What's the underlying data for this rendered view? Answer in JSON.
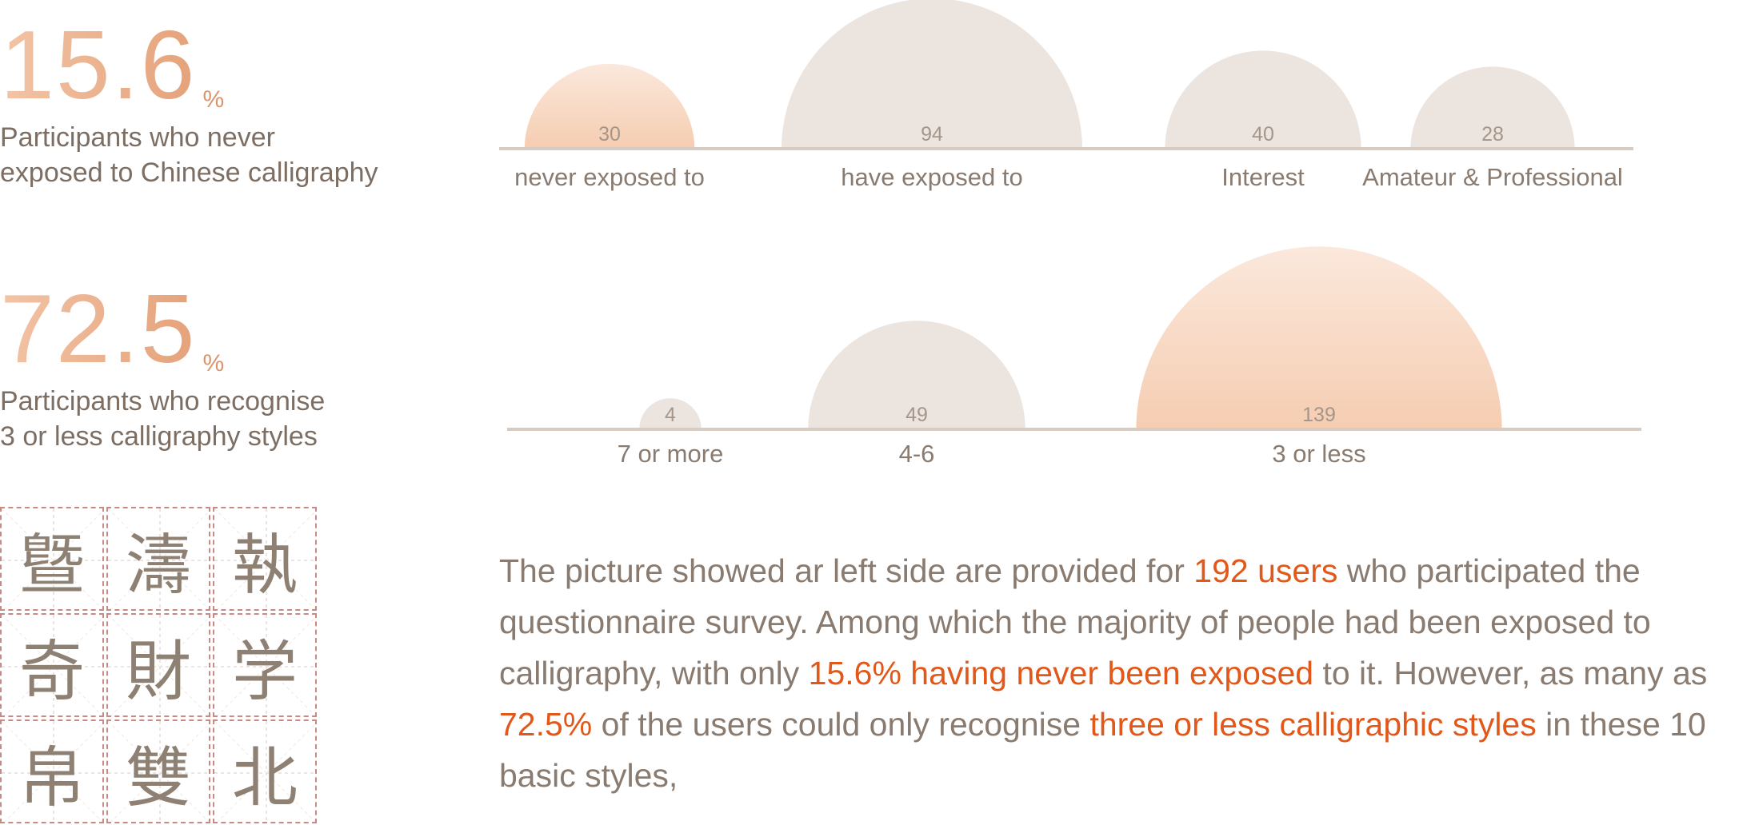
{
  "stat1": {
    "value": "15.6",
    "unit": "%",
    "line1": "Participants who never",
    "line2": "exposed to Chinese calligraphy"
  },
  "stat2": {
    "value": "72.5",
    "unit": "%",
    "line1": "Participants who recognise",
    "line2": "3 or less calligraphy styles"
  },
  "chart_data": [
    {
      "type": "bar",
      "categories": [
        "never exposed to",
        "have exposed to",
        "Interest",
        "Amateur & Professional"
      ],
      "values": [
        30,
        94,
        40,
        28
      ],
      "highlight_index": 0
    },
    {
      "type": "bar",
      "categories": [
        "7 or more",
        "4-6",
        "3 or less"
      ],
      "values": [
        4,
        49,
        139
      ],
      "highlight_index": 2
    }
  ],
  "colors": {
    "highlight": "#e2581a",
    "accent_peach": "#f6d2ba",
    "neutral_dome": "#ece4df",
    "baseline": "#d8cbc2"
  },
  "calligraphy_grid": {
    "glyphs": [
      "曁",
      "濤",
      "執",
      "奇",
      "財",
      "学",
      "帛",
      "雙",
      "北"
    ]
  },
  "paragraph": {
    "t1": "The picture showed ar left side are provided for ",
    "h1": "192 users",
    "t2": " who participated the questionnaire survey. Among which the majority of people had been exposed to calligraphy, with only ",
    "h2": "15.6% having never been exposed",
    "t3": " to it. However, as many as ",
    "h3": "72.5%",
    "t4": " of the users could only recognise ",
    "h4": "three or less calligraphic styles",
    "t5": " in these 10 basic styles,"
  }
}
